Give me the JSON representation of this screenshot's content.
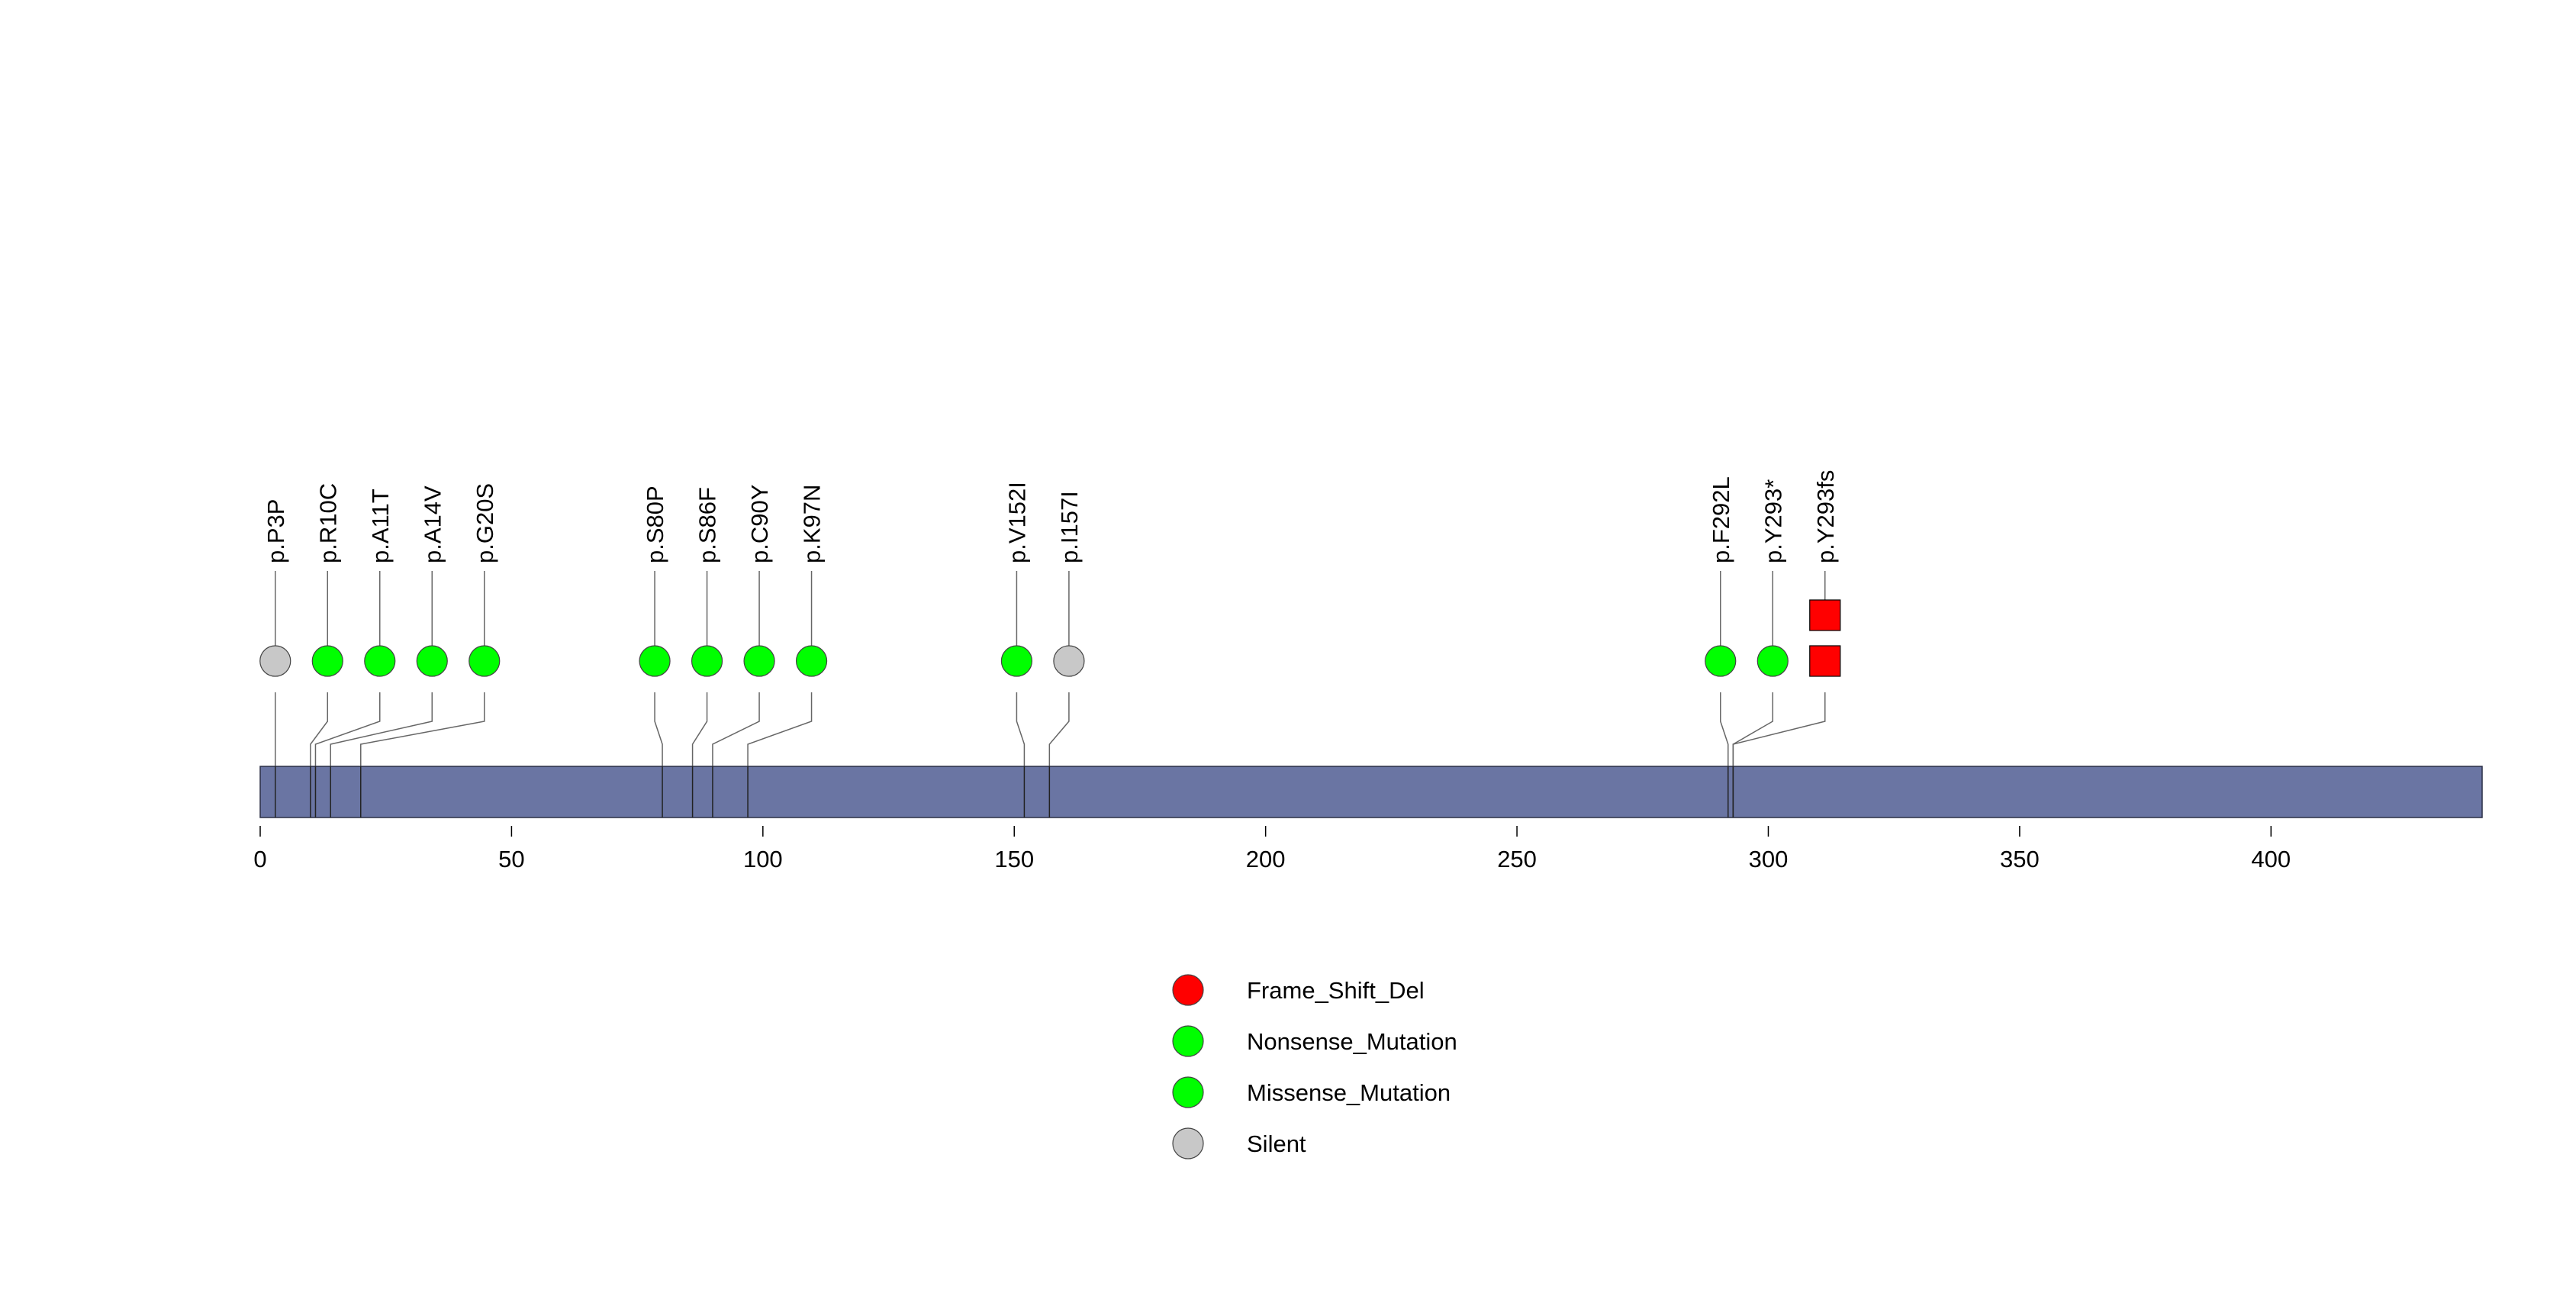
{
  "chart_data": {
    "type": "lollipop",
    "title": "",
    "xlabel": "",
    "ylabel": "",
    "xlim": [
      0,
      442
    ],
    "ticks": [
      0,
      50,
      100,
      150,
      200,
      250,
      300,
      350,
      400
    ],
    "tick_labels": [
      "0",
      "50",
      "100",
      "150",
      "200",
      "250",
      "300",
      "350",
      "400"
    ],
    "protein_length": 442,
    "mutations": [
      {
        "label": "p.P3P",
        "position": 3,
        "type": "Silent",
        "count": 1
      },
      {
        "label": "p.R10C",
        "position": 10,
        "type": "Missense_Mutation",
        "count": 1
      },
      {
        "label": "p.A11T",
        "position": 11,
        "type": "Missense_Mutation",
        "count": 1
      },
      {
        "label": "p.A14V",
        "position": 14,
        "type": "Missense_Mutation",
        "count": 1
      },
      {
        "label": "p.G20S",
        "position": 20,
        "type": "Missense_Mutation",
        "count": 1
      },
      {
        "label": "p.S80P",
        "position": 80,
        "type": "Missense_Mutation",
        "count": 1
      },
      {
        "label": "p.S86F",
        "position": 86,
        "type": "Missense_Mutation",
        "count": 1
      },
      {
        "label": "p.C90Y",
        "position": 90,
        "type": "Missense_Mutation",
        "count": 1
      },
      {
        "label": "p.K97N",
        "position": 97,
        "type": "Missense_Mutation",
        "count": 1
      },
      {
        "label": "p.V152I",
        "position": 152,
        "type": "Missense_Mutation",
        "count": 1
      },
      {
        "label": "p.I157I",
        "position": 157,
        "type": "Silent",
        "count": 1
      },
      {
        "label": "p.F292L",
        "position": 292,
        "type": "Missense_Mutation",
        "count": 1
      },
      {
        "label": "p.Y293*",
        "position": 293,
        "type": "Nonsense_Mutation",
        "count": 1
      },
      {
        "label": "p.Y293fs",
        "position": 293,
        "type": "Frame_Shift_Del",
        "count": 2
      }
    ],
    "legend": [
      {
        "name": "Frame_Shift_Del",
        "color": "#ff0000"
      },
      {
        "name": "Nonsense_Mutation",
        "color": "#00ff00"
      },
      {
        "name": "Missense_Mutation",
        "color": "#00ff00"
      },
      {
        "name": "Silent",
        "color": "#c8c8c8"
      }
    ],
    "legend_position": "bottom-center",
    "colors": {
      "domain_bar": "#6a75a3",
      "Frame_Shift_Del": "#ff0000",
      "Nonsense_Mutation": "#00ff00",
      "Missense_Mutation": "#00ff00",
      "Silent": "#c8c8c8"
    }
  }
}
